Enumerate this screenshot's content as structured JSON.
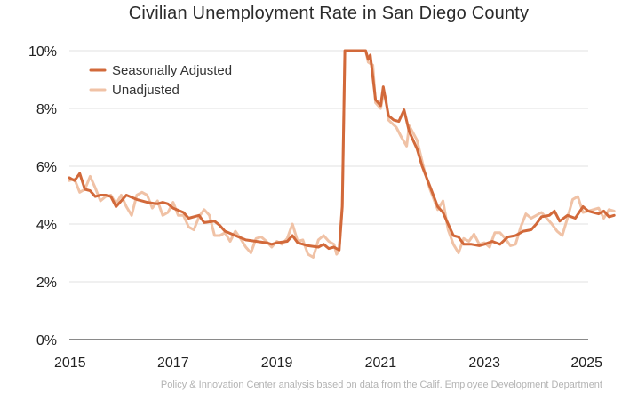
{
  "chart_data": {
    "type": "line",
    "title": "Civilian Unemployment Rate in San Diego County",
    "xlabel": "",
    "ylabel": "",
    "xlim": [
      2015,
      2025
    ],
    "ylim": [
      0,
      10
    ],
    "grid": true,
    "x_ticks": [
      2015,
      2017,
      2019,
      2021,
      2023,
      2025
    ],
    "x_tick_labels": [
      "2015",
      "2017",
      "2019",
      "2021",
      "2023",
      "2025"
    ],
    "y_ticks": [
      0,
      2,
      4,
      6,
      8,
      10
    ],
    "y_tick_labels": [
      "0%",
      "2%",
      "4%",
      "6%",
      "8%",
      "10%"
    ],
    "legend_position": "top-left",
    "series": [
      {
        "name": "Seasonally Adjusted",
        "color": "#d2693a",
        "points": [
          [
            2015.0,
            5.6
          ],
          [
            2015.1,
            5.5
          ],
          [
            2015.2,
            5.75
          ],
          [
            2015.3,
            5.2
          ],
          [
            2015.4,
            5.15
          ],
          [
            2015.5,
            4.95
          ],
          [
            2015.6,
            5.0
          ],
          [
            2015.7,
            5.0
          ],
          [
            2015.8,
            4.95
          ],
          [
            2015.9,
            4.6
          ],
          [
            2016.0,
            4.8
          ],
          [
            2016.1,
            5.0
          ],
          [
            2016.3,
            4.85
          ],
          [
            2016.5,
            4.75
          ],
          [
            2016.7,
            4.7
          ],
          [
            2016.8,
            4.75
          ],
          [
            2016.9,
            4.7
          ],
          [
            2017.0,
            4.55
          ],
          [
            2017.2,
            4.4
          ],
          [
            2017.3,
            4.2
          ],
          [
            2017.5,
            4.3
          ],
          [
            2017.6,
            4.05
          ],
          [
            2017.8,
            4.1
          ],
          [
            2017.9,
            3.95
          ],
          [
            2018.0,
            3.75
          ],
          [
            2018.2,
            3.6
          ],
          [
            2018.4,
            3.45
          ],
          [
            2018.6,
            3.4
          ],
          [
            2018.8,
            3.35
          ],
          [
            2018.9,
            3.3
          ],
          [
            2019.0,
            3.35
          ],
          [
            2019.2,
            3.4
          ],
          [
            2019.3,
            3.6
          ],
          [
            2019.4,
            3.35
          ],
          [
            2019.6,
            3.25
          ],
          [
            2019.8,
            3.2
          ],
          [
            2019.9,
            3.3
          ],
          [
            2020.0,
            3.15
          ],
          [
            2020.1,
            3.2
          ],
          [
            2020.2,
            3.1
          ],
          [
            2020.26,
            4.6
          ],
          [
            2020.31,
            10.0
          ],
          [
            2020.71,
            10.0
          ],
          [
            2020.76,
            9.7
          ],
          [
            2020.8,
            9.85
          ],
          [
            2020.9,
            8.3
          ],
          [
            2021.0,
            8.1
          ],
          [
            2021.05,
            8.75
          ],
          [
            2021.15,
            7.75
          ],
          [
            2021.25,
            7.6
          ],
          [
            2021.35,
            7.55
          ],
          [
            2021.45,
            7.95
          ],
          [
            2021.55,
            7.2
          ],
          [
            2021.7,
            6.6
          ],
          [
            2021.8,
            6.0
          ],
          [
            2021.95,
            5.3
          ],
          [
            2022.1,
            4.6
          ],
          [
            2022.2,
            4.4
          ],
          [
            2022.3,
            4.0
          ],
          [
            2022.4,
            3.6
          ],
          [
            2022.5,
            3.55
          ],
          [
            2022.6,
            3.3
          ],
          [
            2022.75,
            3.3
          ],
          [
            2022.9,
            3.25
          ],
          [
            2023.0,
            3.3
          ],
          [
            2023.15,
            3.4
          ],
          [
            2023.3,
            3.3
          ],
          [
            2023.45,
            3.55
          ],
          [
            2023.6,
            3.6
          ],
          [
            2023.75,
            3.75
          ],
          [
            2023.9,
            3.8
          ],
          [
            2024.0,
            4.0
          ],
          [
            2024.1,
            4.25
          ],
          [
            2024.25,
            4.3
          ],
          [
            2024.35,
            4.45
          ],
          [
            2024.45,
            4.1
          ],
          [
            2024.6,
            4.3
          ],
          [
            2024.75,
            4.2
          ],
          [
            2024.9,
            4.6
          ],
          [
            2025.0,
            4.45
          ],
          [
            2025.1,
            4.4
          ],
          [
            2025.2,
            4.35
          ],
          [
            2025.3,
            4.45
          ],
          [
            2025.4,
            4.25
          ],
          [
            2025.5,
            4.3
          ]
        ]
      },
      {
        "name": "Unadjusted",
        "color": "#f0c2a6",
        "points": [
          [
            2015.0,
            5.5
          ],
          [
            2015.1,
            5.55
          ],
          [
            2015.2,
            5.1
          ],
          [
            2015.3,
            5.2
          ],
          [
            2015.4,
            5.65
          ],
          [
            2015.5,
            5.25
          ],
          [
            2015.6,
            4.8
          ],
          [
            2015.7,
            4.95
          ],
          [
            2015.8,
            5.0
          ],
          [
            2015.9,
            4.7
          ],
          [
            2016.0,
            5.0
          ],
          [
            2016.1,
            4.6
          ],
          [
            2016.2,
            4.3
          ],
          [
            2016.3,
            5.0
          ],
          [
            2016.4,
            5.1
          ],
          [
            2016.5,
            5.0
          ],
          [
            2016.6,
            4.55
          ],
          [
            2016.7,
            4.8
          ],
          [
            2016.8,
            4.3
          ],
          [
            2016.9,
            4.4
          ],
          [
            2017.0,
            4.75
          ],
          [
            2017.1,
            4.3
          ],
          [
            2017.2,
            4.3
          ],
          [
            2017.3,
            3.9
          ],
          [
            2017.4,
            3.8
          ],
          [
            2017.5,
            4.25
          ],
          [
            2017.6,
            4.5
          ],
          [
            2017.7,
            4.3
          ],
          [
            2017.8,
            3.6
          ],
          [
            2017.9,
            3.6
          ],
          [
            2018.0,
            3.7
          ],
          [
            2018.1,
            3.4
          ],
          [
            2018.2,
            3.75
          ],
          [
            2018.3,
            3.5
          ],
          [
            2018.4,
            3.2
          ],
          [
            2018.5,
            3.0
          ],
          [
            2018.6,
            3.5
          ],
          [
            2018.7,
            3.55
          ],
          [
            2018.8,
            3.4
          ],
          [
            2018.9,
            3.2
          ],
          [
            2019.0,
            3.4
          ],
          [
            2019.1,
            3.3
          ],
          [
            2019.2,
            3.5
          ],
          [
            2019.3,
            4.0
          ],
          [
            2019.4,
            3.4
          ],
          [
            2019.5,
            3.45
          ],
          [
            2019.6,
            2.95
          ],
          [
            2019.7,
            2.85
          ],
          [
            2019.8,
            3.45
          ],
          [
            2019.9,
            3.6
          ],
          [
            2020.0,
            3.4
          ],
          [
            2020.1,
            3.3
          ],
          [
            2020.15,
            2.95
          ],
          [
            2020.2,
            3.1
          ],
          [
            2020.26,
            4.7
          ],
          [
            2020.31,
            10.0
          ],
          [
            2020.71,
            10.0
          ],
          [
            2020.76,
            9.6
          ],
          [
            2020.85,
            9.5
          ],
          [
            2020.9,
            8.2
          ],
          [
            2021.0,
            8.0
          ],
          [
            2021.05,
            8.5
          ],
          [
            2021.1,
            8.4
          ],
          [
            2021.15,
            7.6
          ],
          [
            2021.3,
            7.35
          ],
          [
            2021.4,
            7.0
          ],
          [
            2021.5,
            6.7
          ],
          [
            2021.55,
            7.4
          ],
          [
            2021.7,
            6.9
          ],
          [
            2021.85,
            5.8
          ],
          [
            2021.95,
            5.2
          ],
          [
            2022.1,
            4.5
          ],
          [
            2022.2,
            4.8
          ],
          [
            2022.3,
            3.8
          ],
          [
            2022.4,
            3.3
          ],
          [
            2022.5,
            3.0
          ],
          [
            2022.6,
            3.5
          ],
          [
            2022.7,
            3.4
          ],
          [
            2022.8,
            3.65
          ],
          [
            2022.9,
            3.3
          ],
          [
            2023.0,
            3.35
          ],
          [
            2023.1,
            3.2
          ],
          [
            2023.2,
            3.7
          ],
          [
            2023.3,
            3.7
          ],
          [
            2023.4,
            3.5
          ],
          [
            2023.5,
            3.25
          ],
          [
            2023.6,
            3.3
          ],
          [
            2023.7,
            3.9
          ],
          [
            2023.8,
            4.35
          ],
          [
            2023.9,
            4.2
          ],
          [
            2024.0,
            4.3
          ],
          [
            2024.1,
            4.4
          ],
          [
            2024.2,
            4.2
          ],
          [
            2024.3,
            4.0
          ],
          [
            2024.4,
            3.75
          ],
          [
            2024.5,
            3.6
          ],
          [
            2024.6,
            4.2
          ],
          [
            2024.7,
            4.85
          ],
          [
            2024.8,
            4.95
          ],
          [
            2024.9,
            4.4
          ],
          [
            2025.0,
            4.45
          ],
          [
            2025.1,
            4.5
          ],
          [
            2025.2,
            4.55
          ],
          [
            2025.3,
            4.2
          ],
          [
            2025.4,
            4.5
          ],
          [
            2025.5,
            4.45
          ]
        ]
      }
    ]
  },
  "source_note": "Policy & Innovation Center analysis based on data from the Calif. Employee Development Department"
}
